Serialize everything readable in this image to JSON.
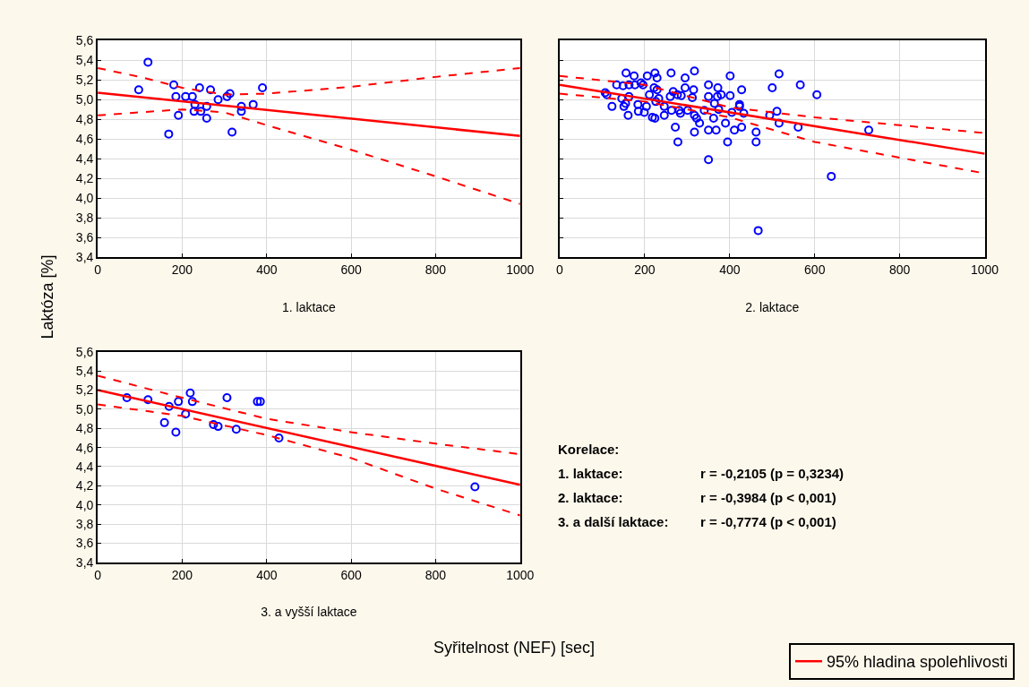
{
  "chart_data": [
    {
      "type": "scatter",
      "xlabel": "1. laktace",
      "ylabel": "Laktóza [%]",
      "annotations": [
        "Syřitelnost (NEF) [sec]"
      ],
      "xlim": [
        0,
        1000
      ],
      "xticks": [
        0,
        200,
        400,
        600,
        800,
        1000
      ],
      "ylim": [
        3.4,
        5.6
      ],
      "yticks": [
        {
          "value": 3.4,
          "label": "3,4"
        },
        {
          "value": 3.6,
          "label": "3,6"
        },
        {
          "value": 3.8,
          "label": "3,8"
        },
        {
          "value": 4.0,
          "label": "4,0"
        },
        {
          "value": 4.2,
          "label": "4,2"
        },
        {
          "value": 4.4,
          "label": "4,4"
        },
        {
          "value": 4.6,
          "label": "4,6"
        },
        {
          "value": 4.8,
          "label": "4,8"
        },
        {
          "value": 5.0,
          "label": "5,0"
        },
        {
          "value": 5.2,
          "label": "5,2"
        },
        {
          "value": 5.4,
          "label": "5,4"
        },
        {
          "value": 5.6,
          "label": "5,6"
        }
      ],
      "grid": true,
      "legend": "bottom right",
      "series": [
        {
          "color": "#0000ff",
          "marker": "circle",
          "x": [
            119,
            97,
            180,
            185,
            191,
            168,
            208,
            224,
            230,
            228,
            241,
            244,
            258,
            258,
            267,
            285,
            306,
            313,
            318,
            340,
            340,
            368,
            390
          ],
          "values": [
            5.38,
            5.1,
            5.15,
            5.03,
            4.84,
            4.65,
            5.03,
            5.03,
            4.95,
            4.88,
            5.12,
            4.88,
            4.93,
            4.81,
            5.1,
            5.0,
            5.03,
            5.06,
            4.67,
            4.93,
            4.88,
            4.95,
            5.12
          ]
        },
        {
          "type": "line",
          "name": "95% hladina spolehlivosti",
          "color": "#ff0000",
          "line_style": "solid",
          "x": [
            0,
            1000
          ],
          "values": [
            5.07,
            4.63
          ]
        },
        {
          "type": "line",
          "color": "#ff0000",
          "line_style": "dashed",
          "x": [
            0,
            100,
            200,
            300,
            400,
            600,
            800,
            1000
          ],
          "values": [
            5.32,
            5.23,
            5.12,
            5.05,
            5.06,
            5.13,
            5.23,
            5.32
          ]
        },
        {
          "type": "line",
          "color": "#ff0000",
          "line_style": "dashed",
          "x": [
            0,
            200,
            300,
            400,
            600,
            800,
            1000
          ],
          "values": [
            4.84,
            4.9,
            4.87,
            4.74,
            4.49,
            4.22,
            3.94
          ]
        }
      ]
    },
    {
      "type": "scatter",
      "xlabel": "2. laktace",
      "xlim": [
        0,
        1000
      ],
      "xticks": [
        0,
        200,
        400,
        600,
        800,
        1000
      ],
      "ylim": [
        3.4,
        5.6
      ],
      "yticks": [
        {
          "value": 3.4,
          "label": null
        },
        {
          "value": 3.6,
          "label": null
        },
        {
          "value": 3.8,
          "label": null
        },
        {
          "value": 4.0,
          "label": null
        },
        {
          "value": 4.2,
          "label": null
        },
        {
          "value": 4.4,
          "label": null
        },
        {
          "value": 4.6,
          "label": null
        },
        {
          "value": 4.8,
          "label": null
        },
        {
          "value": 5.0,
          "label": null
        },
        {
          "value": 5.2,
          "label": null
        },
        {
          "value": 5.4,
          "label": null
        },
        {
          "value": 5.6,
          "label": null
        }
      ],
      "tick_labels": "x",
      "grid": true,
      "series": [
        {
          "color": "#0000ff",
          "marker": "circle",
          "x": [
            156,
            175,
            206,
            224,
            229,
            262,
            295,
            317,
            401,
            516,
            134,
            149,
            163,
            177,
            191,
            196,
            222,
            229,
            295,
            315,
            350,
            372,
            428,
            500,
            566,
            605,
            107,
            111,
            146,
            163,
            155,
            151,
            123,
            184,
            185,
            161,
            199,
            204,
            211,
            218,
            224,
            226,
            233,
            246,
            246,
            260,
            267,
            277,
            263,
            284,
            281,
            286,
            301,
            312,
            317,
            322,
            329,
            317,
            272,
            278,
            340,
            350,
            364,
            362,
            371,
            380,
            374,
            350,
            368,
            350,
            390,
            395,
            401,
            405,
            411,
            423,
            423,
            433,
            428,
            462,
            462,
            467,
            494,
            511,
            516,
            561,
            639,
            727
          ],
          "values": [
            5.27,
            5.24,
            5.24,
            5.27,
            5.22,
            5.27,
            5.22,
            5.29,
            5.24,
            5.26,
            5.15,
            5.14,
            5.15,
            5.15,
            5.17,
            5.15,
            5.12,
            5.1,
            5.12,
            5.1,
            5.15,
            5.12,
            5.1,
            5.12,
            5.15,
            5.05,
            5.07,
            5.05,
            5.01,
            5.03,
            4.96,
            4.93,
            4.93,
            4.95,
            4.88,
            4.84,
            4.87,
            4.93,
            5.05,
            4.82,
            4.81,
            4.98,
            5.01,
            4.84,
            4.93,
            5.03,
            5.08,
            5.05,
            4.89,
            4.86,
            4.89,
            5.04,
            4.89,
            5.02,
            4.84,
            4.81,
            4.76,
            4.67,
            4.72,
            4.57,
            4.89,
            5.03,
            4.96,
            4.81,
            5.03,
            5.05,
            4.9,
            4.69,
            4.69,
            4.39,
            4.76,
            4.57,
            5.04,
            4.87,
            4.69,
            4.95,
            4.93,
            4.86,
            4.72,
            4.67,
            4.57,
            3.67,
            4.84,
            4.88,
            4.76,
            4.72,
            4.22,
            4.69
          ]
        },
        {
          "type": "line",
          "color": "#ff0000",
          "line_style": "solid",
          "x": [
            0,
            1000
          ],
          "values": [
            5.15,
            4.45
          ]
        },
        {
          "type": "line",
          "color": "#ff0000",
          "line_style": "dashed",
          "x": [
            0,
            200,
            400,
            600,
            800,
            1000
          ],
          "values": [
            5.24,
            5.15,
            4.92,
            4.82,
            4.74,
            4.66
          ]
        },
        {
          "type": "line",
          "color": "#ff0000",
          "line_style": "dashed",
          "x": [
            0,
            200,
            400,
            600,
            800,
            1000
          ],
          "values": [
            5.06,
            4.98,
            4.82,
            4.57,
            4.41,
            4.25
          ]
        }
      ]
    },
    {
      "type": "scatter",
      "xlabel": "3. a vyšší laktace",
      "annotations": [
        "Korelace:",
        "1. laktace:",
        "r = -0,2105 (p = 0,3234)",
        "2. laktace:",
        "r = -0,3984 (p < 0,001)",
        "3. a další laktace:",
        "r = -0,7774 (p < 0,001)"
      ],
      "xlim": [
        0,
        1000
      ],
      "xticks": [
        0,
        200,
        400,
        600,
        800,
        1000
      ],
      "ylim": [
        3.4,
        5.6
      ],
      "yticks": [
        {
          "value": 3.4,
          "label": "3,4"
        },
        {
          "value": 3.6,
          "label": "3,6"
        },
        {
          "value": 3.8,
          "label": "3,8"
        },
        {
          "value": 4.0,
          "label": "4,0"
        },
        {
          "value": 4.2,
          "label": "4,2"
        },
        {
          "value": 4.4,
          "label": "4,4"
        },
        {
          "value": 4.6,
          "label": "4,6"
        },
        {
          "value": 4.8,
          "label": "4,8"
        },
        {
          "value": 5.0,
          "label": "5,0"
        },
        {
          "value": 5.2,
          "label": "5,2"
        },
        {
          "value": 5.4,
          "label": "5,4"
        },
        {
          "value": 5.6,
          "label": "5,6"
        }
      ],
      "grid": true,
      "series": [
        {
          "color": "#0000ff",
          "marker": "circle",
          "x": [
            69,
            119,
            169,
            158,
            185,
            191,
            219,
            224,
            208,
            274,
            285,
            306,
            328,
            378,
            385,
            429,
            893
          ],
          "values": [
            5.12,
            5.1,
            5.03,
            4.86,
            4.76,
            5.08,
            5.17,
            5.08,
            4.95,
            4.84,
            4.82,
            5.12,
            4.79,
            5.08,
            5.08,
            4.7,
            4.19
          ]
        },
        {
          "type": "line",
          "color": "#ff0000",
          "line_style": "solid",
          "x": [
            0,
            1000
          ],
          "values": [
            5.2,
            4.21
          ]
        },
        {
          "type": "line",
          "color": "#ff0000",
          "line_style": "dashed",
          "x": [
            0,
            200,
            400,
            600,
            800,
            1000
          ],
          "values": [
            5.35,
            5.12,
            4.9,
            4.76,
            4.64,
            4.53
          ]
        },
        {
          "type": "line",
          "color": "#ff0000",
          "line_style": "dashed",
          "x": [
            0,
            200,
            400,
            600,
            800,
            1000
          ],
          "values": [
            5.05,
            4.93,
            4.73,
            4.49,
            4.17,
            3.89
          ]
        }
      ]
    }
  ]
}
